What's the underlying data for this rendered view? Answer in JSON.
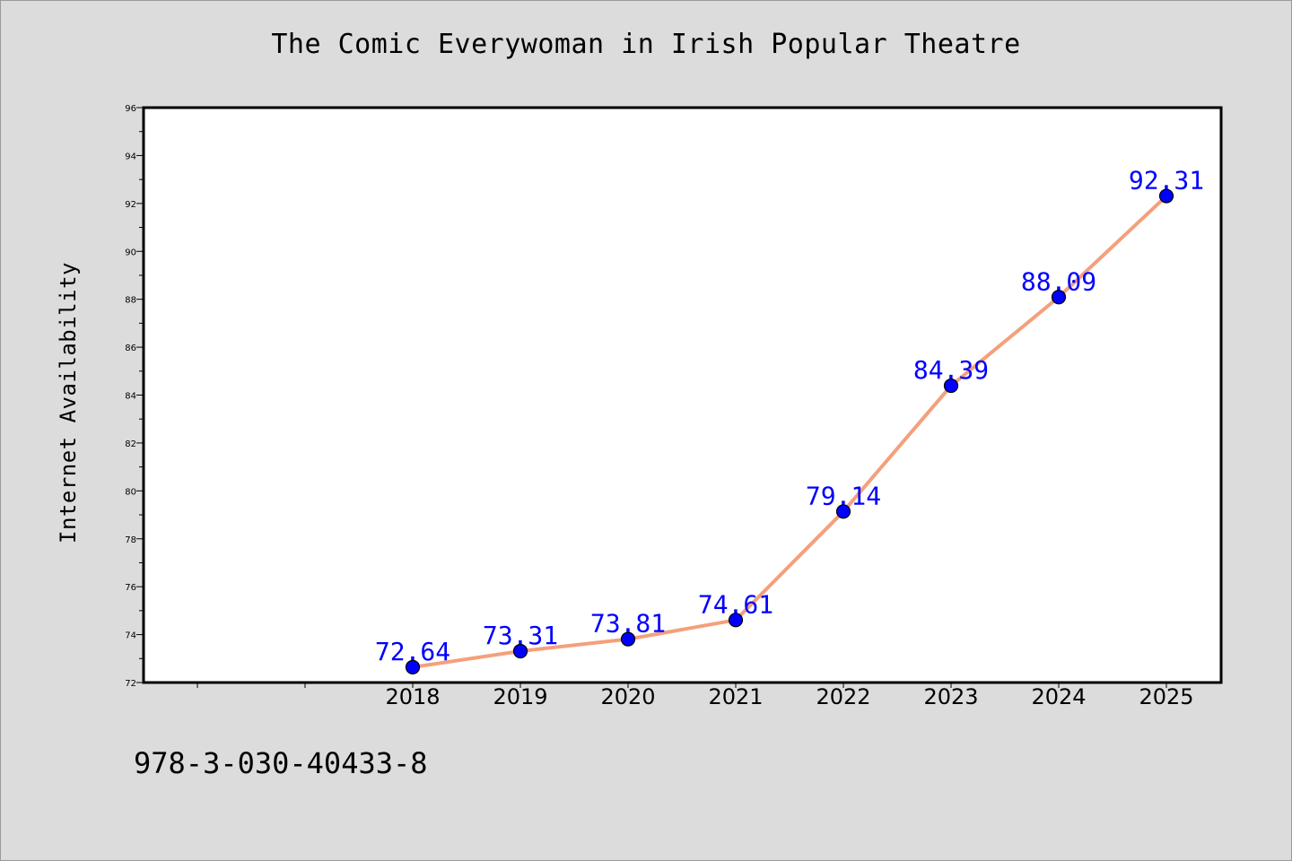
{
  "chart_data": {
    "type": "line",
    "title": "The Comic Everywoman in Irish Popular Theatre",
    "xlabel": "",
    "ylabel": "Internet Availability",
    "categories": [
      "2018",
      "2019",
      "2020",
      "2021",
      "2022",
      "2023",
      "2024",
      "2025"
    ],
    "x_slots": 10,
    "values": [
      72.64,
      73.31,
      73.81,
      74.61,
      79.14,
      84.39,
      88.09,
      92.31
    ],
    "value_labels": [
      "72.64",
      "73.31",
      "73.81",
      "74.61",
      "79.14",
      "84.39",
      "88.09",
      "92.31"
    ],
    "ylim": [
      72,
      96
    ],
    "yticks": [
      "72",
      "74",
      "76",
      "78",
      "80",
      "82",
      "84",
      "86",
      "88",
      "90",
      "92",
      "94",
      "96"
    ],
    "grid": false,
    "colors": {
      "line": "#f4a07c",
      "marker": "#0000ff",
      "label": "#0000ff",
      "background": "#dcdcdc",
      "plot_background": "#ffffff"
    }
  },
  "footer": {
    "isbn": "978-3-030-40433-8"
  }
}
